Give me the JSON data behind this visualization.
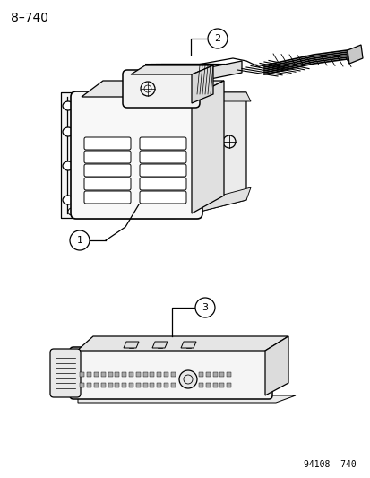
{
  "title_label": "8–740",
  "footer_label": "94108  740",
  "bg_color": "#ffffff",
  "line_color": "#000000",
  "label1": "1",
  "label2": "2",
  "label3": "3",
  "title_fontsize": 10,
  "label_fontsize": 8,
  "footer_fontsize": 7
}
